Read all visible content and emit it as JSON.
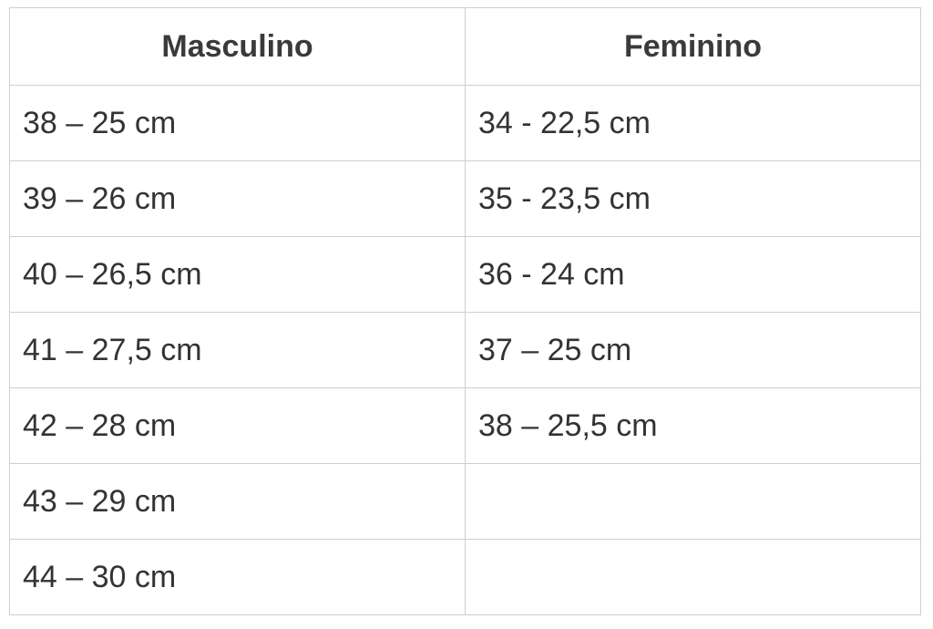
{
  "headers": [
    "Masculino",
    "Feminino"
  ],
  "rows": [
    [
      "38 – 25 cm",
      "34 - 22,5 cm"
    ],
    [
      "39 – 26 cm",
      "35 - 23,5 cm"
    ],
    [
      "40 – 26,5 cm",
      "36 - 24 cm"
    ],
    [
      "41 – 27,5 cm",
      "37 – 25 cm"
    ],
    [
      "42 – 28 cm",
      "38 – 25,5 cm"
    ],
    [
      "43 – 29 cm",
      ""
    ],
    [
      "44 – 30 cm",
      ""
    ]
  ]
}
